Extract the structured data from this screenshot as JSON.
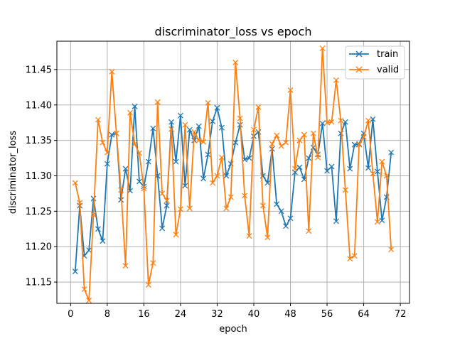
{
  "chart_data": {
    "type": "line",
    "title": "discriminator_loss vs epoch",
    "xlabel": "epoch",
    "ylabel": "discriminator_loss",
    "xlim": [
      -3,
      74
    ],
    "ylim": [
      11.12,
      11.49
    ],
    "xticks": [
      0,
      8,
      16,
      24,
      32,
      40,
      48,
      56,
      64,
      72
    ],
    "yticks": [
      11.15,
      11.2,
      11.25,
      11.3,
      11.35,
      11.4,
      11.45
    ],
    "grid": true,
    "legend_position": "top-right",
    "x": [
      1,
      2,
      3,
      4,
      5,
      6,
      7,
      8,
      9,
      10,
      11,
      12,
      13,
      14,
      15,
      16,
      17,
      18,
      19,
      20,
      21,
      22,
      23,
      24,
      25,
      26,
      27,
      28,
      29,
      30,
      31,
      32,
      33,
      34,
      35,
      36,
      37,
      38,
      39,
      40,
      41,
      42,
      43,
      44,
      45,
      46,
      47,
      48,
      49,
      50,
      51,
      52,
      53,
      54,
      55,
      56,
      57,
      58,
      59,
      60,
      61,
      62,
      63,
      64,
      65,
      66,
      67,
      68,
      69,
      70
    ],
    "series": [
      {
        "name": "train",
        "color": "#1f77b4",
        "marker": "x",
        "values": [
          11.165,
          11.258,
          11.187,
          11.195,
          11.268,
          11.225,
          11.208,
          11.317,
          11.358,
          11.36,
          11.266,
          11.31,
          11.279,
          11.398,
          11.292,
          11.285,
          11.32,
          11.367,
          11.3,
          11.226,
          11.258,
          11.376,
          11.32,
          11.385,
          11.286,
          11.365,
          11.35,
          11.37,
          11.296,
          11.33,
          11.377,
          11.396,
          11.368,
          11.3,
          11.317,
          11.347,
          11.372,
          11.323,
          11.325,
          11.356,
          11.362,
          11.3,
          11.29,
          11.338,
          11.26,
          11.25,
          11.229,
          11.24,
          11.305,
          11.312,
          11.295,
          11.325,
          11.34,
          11.33,
          11.374,
          11.307,
          11.313,
          11.236,
          11.36,
          11.376,
          11.31,
          11.344,
          11.345,
          11.36,
          11.311,
          11.38,
          11.306,
          11.237,
          11.27,
          11.333
        ]
      },
      {
        "name": "valid",
        "color": "#ff7f0e",
        "marker": "x",
        "values": [
          11.29,
          11.262,
          11.14,
          11.124,
          11.245,
          11.379,
          11.347,
          11.333,
          11.447,
          11.36,
          11.28,
          11.173,
          11.389,
          11.345,
          11.332,
          11.282,
          11.146,
          11.177,
          11.404,
          11.275,
          11.265,
          11.366,
          11.217,
          11.253,
          11.372,
          11.254,
          11.362,
          11.35,
          11.348,
          11.403,
          11.29,
          11.3,
          11.326,
          11.254,
          11.27,
          11.46,
          11.381,
          11.272,
          11.215,
          11.365,
          11.397,
          11.258,
          11.213,
          11.345,
          11.357,
          11.342,
          11.347,
          11.421,
          11.31,
          11.35,
          11.358,
          11.222,
          11.36,
          11.326,
          11.48,
          11.375,
          11.376,
          11.435,
          11.378,
          11.28,
          11.183,
          11.187,
          11.344,
          11.355,
          11.378,
          11.303,
          11.235,
          11.32,
          11.3,
          11.196
        ]
      }
    ]
  }
}
